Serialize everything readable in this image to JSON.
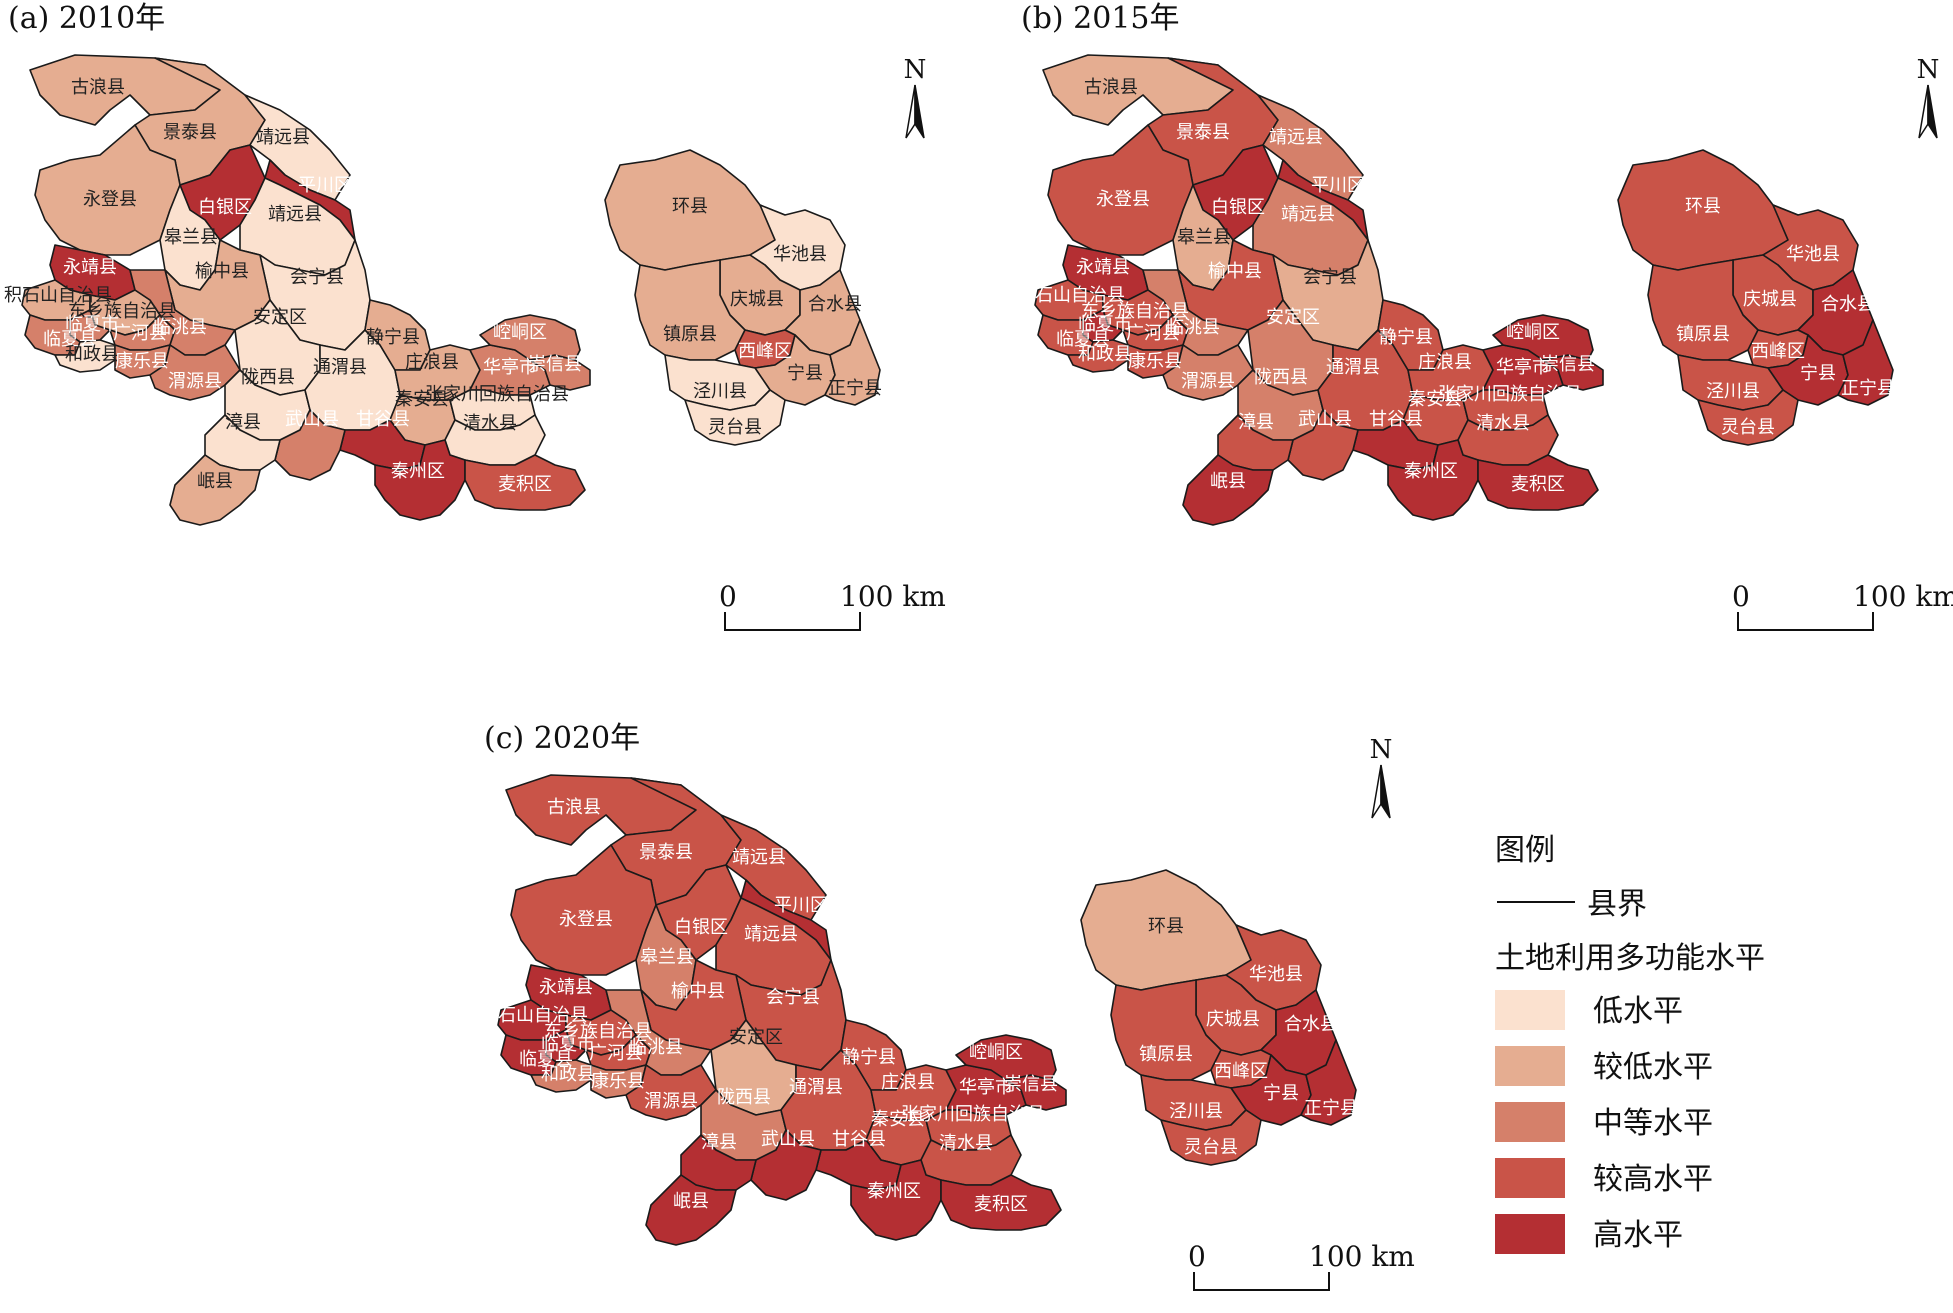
{
  "colors": {
    "low": "#fbe1cf",
    "lower": "#e5ad91",
    "medium": "#d5806a",
    "higher": "#c95448",
    "high": "#b42f33"
  },
  "north_label": "N",
  "scale": {
    "zero": "0",
    "end": "100 km"
  },
  "panels": [
    {
      "title": "(a) 2010年",
      "levels": {
        "gulang": "lower",
        "jingtai": "lower",
        "jingyuan_n": "low",
        "pingchuan": "high",
        "baiyin": "high",
        "yongdeng": "lower",
        "gaolan": "low",
        "jingyuan_s": "low",
        "huining": "low",
        "yuzhong": "lower",
        "anding": "low",
        "yongjing": "high",
        "jishishan": "lower",
        "dongxiang": "lower",
        "linxiashi": "medium",
        "linxiaxian": "medium",
        "guanghe": "medium",
        "linzhao": "medium",
        "hezheng": "low",
        "kangle": "medium",
        "weiyuan": "medium",
        "longxi": "low",
        "tongwei": "low",
        "jingning": "lower",
        "zhuanglang": "lower",
        "huating": "medium",
        "chongxin": "medium",
        "kongtong": "medium",
        "qinan": "lower",
        "zhangjiachuan": "low",
        "qingshui": "low",
        "gangu": "high",
        "wushan": "medium",
        "zhangxian": "low",
        "minxian": "lower",
        "qinzhou": "high",
        "maiji": "higher",
        "huanxian": "lower",
        "huachi": "low",
        "qingcheng": "lower",
        "heshui": "lower",
        "zhenyuan": "lower",
        "xifeng": "higher",
        "ningxian": "lower",
        "zhengning": "lower",
        "jingchuan": "low",
        "lingtai": "low"
      }
    },
    {
      "title": "(b) 2015年",
      "levels": {
        "gulang": "lower",
        "jingtai": "higher",
        "jingyuan_n": "medium",
        "pingchuan": "high",
        "baiyin": "high",
        "yongdeng": "higher",
        "gaolan": "lower",
        "jingyuan_s": "medium",
        "huining": "lower",
        "yuzhong": "higher",
        "anding": "medium",
        "yongjing": "high",
        "jishishan": "higher",
        "dongxiang": "higher",
        "linxiashi": "high",
        "linxiaxian": "higher",
        "guanghe": "higher",
        "linzhao": "medium",
        "hezheng": "higher",
        "kangle": "higher",
        "weiyuan": "medium",
        "longxi": "medium",
        "tongwei": "higher",
        "jingning": "higher",
        "zhuanglang": "higher",
        "huating": "high",
        "chongxin": "high",
        "kongtong": "high",
        "qinan": "higher",
        "zhangjiachuan": "higher",
        "qingshui": "higher",
        "gangu": "high",
        "wushan": "higher",
        "zhangxian": "higher",
        "minxian": "high",
        "qinzhou": "high",
        "maiji": "high",
        "huanxian": "higher",
        "huachi": "higher",
        "qingcheng": "higher",
        "heshui": "high",
        "zhenyuan": "higher",
        "xifeng": "higher",
        "ningxian": "high",
        "zhengning": "high",
        "jingchuan": "higher",
        "lingtai": "higher"
      }
    },
    {
      "title": "(c) 2020年",
      "levels": {
        "gulang": "higher",
        "jingtai": "higher",
        "jingyuan_n": "higher",
        "pingchuan": "high",
        "baiyin": "higher",
        "yongdeng": "higher",
        "gaolan": "medium",
        "jingyuan_s": "higher",
        "huining": "higher",
        "yuzhong": "higher",
        "anding": "lower",
        "yongjing": "high",
        "jishishan": "high",
        "dongxiang": "higher",
        "linxiashi": "high",
        "linxiaxian": "high",
        "guanghe": "higher",
        "linzhao": "medium",
        "hezheng": "medium",
        "kangle": "medium",
        "weiyuan": "higher",
        "longxi": "medium",
        "tongwei": "higher",
        "jingning": "higher",
        "zhuanglang": "higher",
        "huating": "high",
        "chongxin": "high",
        "kongtong": "high",
        "qinan": "higher",
        "zhangjiachuan": "higher",
        "qingshui": "higher",
        "gangu": "high",
        "wushan": "high",
        "zhangxian": "high",
        "minxian": "high",
        "qinzhou": "high",
        "maiji": "high",
        "huanxian": "lower",
        "huachi": "higher",
        "qingcheng": "higher",
        "heshui": "high",
        "zhenyuan": "higher",
        "xifeng": "higher",
        "ningxian": "high",
        "zhengning": "high",
        "jingchuan": "higher",
        "lingtai": "higher"
      }
    }
  ],
  "counties": [
    {
      "id": "gulang",
      "name": "古浪县"
    },
    {
      "id": "jingtai",
      "name": "景泰县"
    },
    {
      "id": "jingyuan_n",
      "name": "靖远县"
    },
    {
      "id": "pingchuan",
      "name": "平川区"
    },
    {
      "id": "baiyin",
      "name": "白银区"
    },
    {
      "id": "yongdeng",
      "name": "永登县"
    },
    {
      "id": "gaolan",
      "name": "皋兰县"
    },
    {
      "id": "jingyuan_s",
      "name": "靖远县"
    },
    {
      "id": "huining",
      "name": "会宁县"
    },
    {
      "id": "yuzhong",
      "name": "榆中县"
    },
    {
      "id": "anding",
      "name": "安定区"
    },
    {
      "id": "yongjing",
      "name": "永靖县"
    },
    {
      "id": "jishishan",
      "name": "积石山自治县"
    },
    {
      "id": "dongxiang",
      "name": "东乡族自治县"
    },
    {
      "id": "linxiashi",
      "name": "临夏市"
    },
    {
      "id": "linxiaxian",
      "name": "临夏县"
    },
    {
      "id": "guanghe",
      "name": "广河县"
    },
    {
      "id": "linzhao",
      "name": "临洮县"
    },
    {
      "id": "hezheng",
      "name": "和政县"
    },
    {
      "id": "kangle",
      "name": "康乐县"
    },
    {
      "id": "weiyuan",
      "name": "渭源县"
    },
    {
      "id": "longxi",
      "name": "陇西县"
    },
    {
      "id": "tongwei",
      "name": "通渭县"
    },
    {
      "id": "jingning",
      "name": "静宁县"
    },
    {
      "id": "zhuanglang",
      "name": "庄浪县"
    },
    {
      "id": "huating",
      "name": "华亭市"
    },
    {
      "id": "chongxin",
      "name": "崇信县"
    },
    {
      "id": "kongtong",
      "name": "崆峒区"
    },
    {
      "id": "qinan",
      "name": "秦安县"
    },
    {
      "id": "zhangjiachuan",
      "name": "张家川回族自治县"
    },
    {
      "id": "qingshui",
      "name": "清水县"
    },
    {
      "id": "gangu",
      "name": "甘谷县"
    },
    {
      "id": "wushan",
      "name": "武山县"
    },
    {
      "id": "zhangxian",
      "name": "漳县"
    },
    {
      "id": "minxian",
      "name": "岷县"
    },
    {
      "id": "qinzhou",
      "name": "秦州区"
    },
    {
      "id": "maiji",
      "name": "麦积区"
    },
    {
      "id": "huanxian",
      "name": "环县"
    },
    {
      "id": "huachi",
      "name": "华池县"
    },
    {
      "id": "qingcheng",
      "name": "庆城县"
    },
    {
      "id": "heshui",
      "name": "合水县"
    },
    {
      "id": "zhenyuan",
      "name": "镇原县"
    },
    {
      "id": "xifeng",
      "name": "西峰区"
    },
    {
      "id": "ningxian",
      "name": "宁县"
    },
    {
      "id": "zhengning",
      "name": "正宁县"
    },
    {
      "id": "jingchuan",
      "name": "泾川县"
    },
    {
      "id": "lingtai",
      "name": "灵台县"
    }
  ],
  "legend": {
    "title": "图例",
    "boundary_label": "县界",
    "subtitle": "土地利用多功能水平",
    "items": [
      {
        "level": "low",
        "label": "低水平"
      },
      {
        "level": "lower",
        "label": "较低水平"
      },
      {
        "level": "medium",
        "label": "中等水平"
      },
      {
        "level": "higher",
        "label": "较高水平"
      },
      {
        "level": "high",
        "label": "高水平"
      }
    ]
  }
}
